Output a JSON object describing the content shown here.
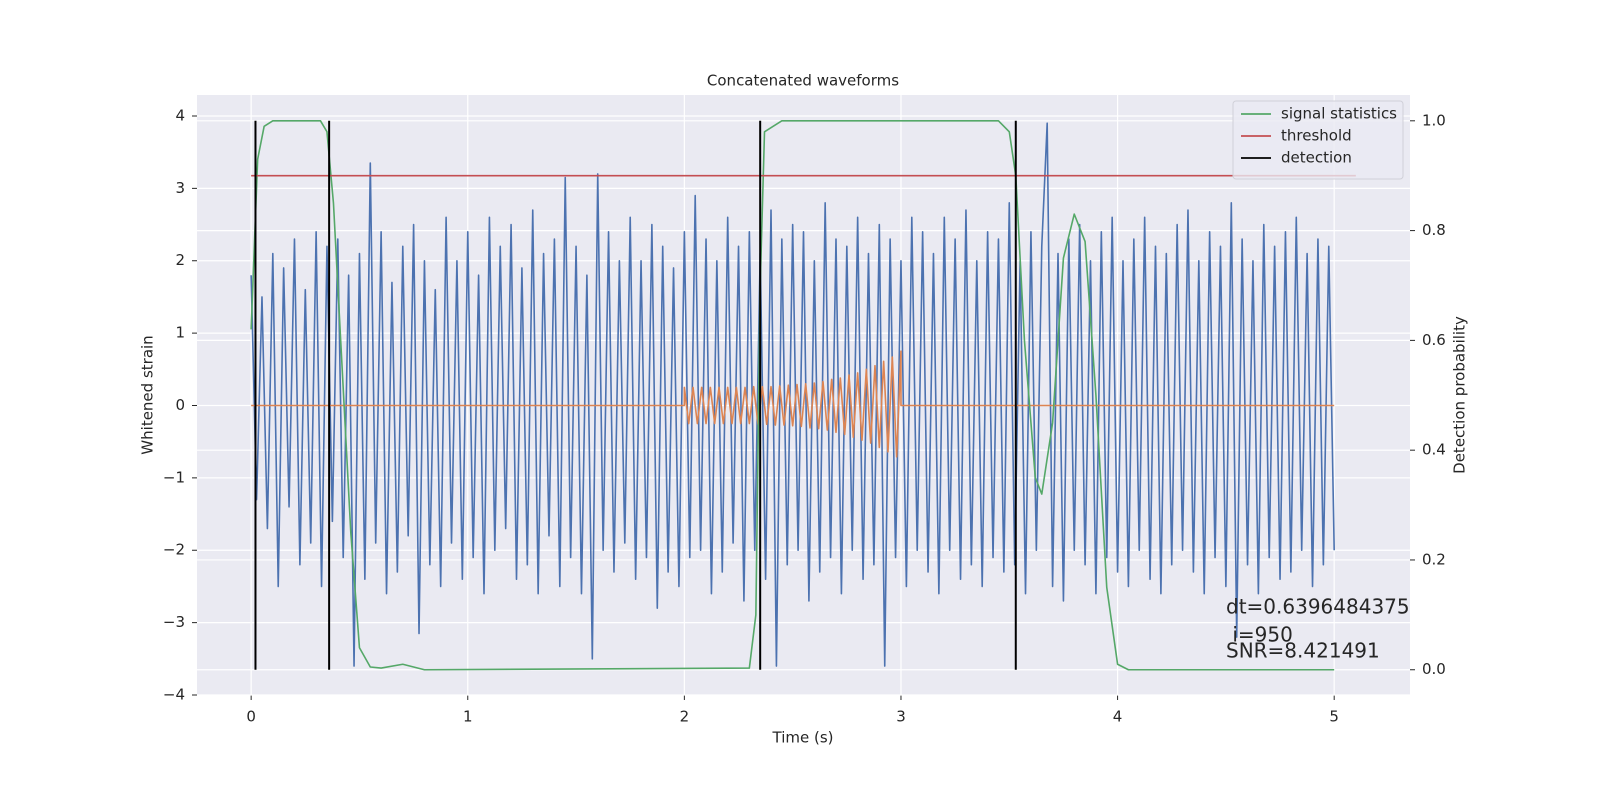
{
  "chart_data": {
    "type": "line",
    "title": "Concatenated waveforms",
    "xlabel": "Time (s)",
    "ylabel": "Whitened strain",
    "y2label": "Detection probability",
    "xlim": [
      -0.25,
      5.35
    ],
    "ylim": [
      -4.0,
      4.29
    ],
    "y2lim": [
      -0.046,
      1.047
    ],
    "xticks": [
      0,
      1,
      2,
      3,
      4,
      5
    ],
    "yticks": [
      {
        "value": -4,
        "label": "−4"
      },
      {
        "value": -3,
        "label": "−3"
      },
      {
        "value": -2,
        "label": "−2"
      },
      {
        "value": -1,
        "label": "−1"
      },
      0,
      1,
      2,
      3,
      4
    ],
    "y2ticks": [
      {
        "value": 0,
        "label": "0.0"
      },
      0.2,
      0.4,
      0.6,
      0.8,
      {
        "value": 1,
        "label": "1.0"
      }
    ],
    "grid": true,
    "legend": "upper right",
    "annotations": [
      "dt=0.6396484375",
      " i=950",
      "SNR=8.421491"
    ],
    "series": [
      {
        "color": "#4c72b0",
        "x": [
          0,
          0.025,
          0.05,
          0.075,
          0.1,
          0.125,
          0.15,
          0.175,
          0.2,
          0.225,
          0.25,
          0.275,
          0.3,
          0.325,
          0.35,
          0.375,
          0.4,
          0.425,
          0.45,
          0.475,
          0.5,
          0.525,
          0.55,
          0.575,
          0.6,
          0.625,
          0.65,
          0.675,
          0.7,
          0.725,
          0.75,
          0.775,
          0.8,
          0.825,
          0.85,
          0.875,
          0.9,
          0.925,
          0.95,
          0.975,
          1,
          1.025,
          1.05,
          1.075,
          1.1,
          1.125,
          1.15,
          1.175,
          1.2,
          1.225,
          1.25,
          1.275,
          1.3,
          1.325,
          1.35,
          1.375,
          1.4,
          1.425,
          1.45,
          1.475,
          1.5,
          1.525,
          1.55,
          1.575,
          1.6,
          1.625,
          1.65,
          1.675,
          1.7,
          1.725,
          1.75,
          1.775,
          1.8,
          1.825,
          1.85,
          1.875,
          1.9,
          1.925,
          1.95,
          1.975,
          2,
          2.025,
          2.05,
          2.075,
          2.1,
          2.125,
          2.15,
          2.175,
          2.2,
          2.225,
          2.25,
          2.275,
          2.3,
          2.325,
          2.35,
          2.375,
          2.4,
          2.425,
          2.45,
          2.475,
          2.5,
          2.525,
          2.55,
          2.575,
          2.6,
          2.625,
          2.65,
          2.675,
          2.7,
          2.725,
          2.75,
          2.775,
          2.8,
          2.825,
          2.85,
          2.875,
          2.9,
          2.925,
          2.95,
          2.975,
          3,
          3.025,
          3.05,
          3.075,
          3.1,
          3.125,
          3.15,
          3.175,
          3.2,
          3.225,
          3.25,
          3.275,
          3.3,
          3.325,
          3.35,
          3.375,
          3.4,
          3.425,
          3.45,
          3.475,
          3.5,
          3.525,
          3.55,
          3.575,
          3.6,
          3.625,
          3.65,
          3.675,
          3.7,
          3.725,
          3.75,
          3.775,
          3.8,
          3.825,
          3.85,
          3.875,
          3.9,
          3.925,
          3.95,
          3.975,
          4,
          4.025,
          4.05,
          4.075,
          4.1,
          4.125,
          4.15,
          4.175,
          4.2,
          4.225,
          4.25,
          4.275,
          4.3,
          4.325,
          4.35,
          4.375,
          4.4,
          4.425,
          4.45,
          4.475,
          4.5,
          4.525,
          4.55,
          4.575,
          4.6,
          4.625,
          4.65,
          4.675,
          4.7,
          4.725,
          4.75,
          4.775,
          4.8,
          4.825,
          4.85,
          4.875,
          4.9,
          4.925,
          4.95,
          4.975,
          5
        ],
        "values": [
          1.8,
          -1.3,
          1.5,
          -1.7,
          2.1,
          -2.5,
          1.9,
          -1.4,
          2.3,
          -2.2,
          1.6,
          -1.9,
          2.4,
          -2.5,
          2.2,
          -1.6,
          2.3,
          -2.1,
          1.8,
          -3.6,
          2.1,
          -2.4,
          3.35,
          -1.9,
          2.4,
          -2.6,
          1.7,
          -2.3,
          2.2,
          -1.8,
          2.5,
          -3.15,
          2.0,
          -2.2,
          1.6,
          -2.5,
          2.6,
          -1.9,
          2.0,
          -2.4,
          2.4,
          -2.1,
          1.8,
          -2.6,
          2.6,
          -2.0,
          2.2,
          -1.7,
          2.5,
          -2.4,
          1.9,
          -2.2,
          2.7,
          -2.6,
          2.1,
          -1.8,
          2.3,
          -2.5,
          3.15,
          -2.1,
          2.2,
          -2.6,
          1.8,
          -3.5,
          3.2,
          -2.0,
          2.4,
          -2.3,
          2.0,
          -1.9,
          2.6,
          -2.4,
          2.0,
          -2.1,
          2.5,
          -2.8,
          2.2,
          -2.3,
          1.9,
          -2.5,
          2.4,
          -2.1,
          2.9,
          -2.0,
          2.3,
          -2.6,
          2.0,
          -2.3,
          2.6,
          -1.9,
          2.2,
          -2.7,
          2.4,
          -2.0,
          2.1,
          -2.4,
          2.7,
          -3.6,
          2.3,
          -2.2,
          2.5,
          -2.0,
          2.4,
          -2.7,
          2.0,
          -2.3,
          2.8,
          -2.1,
          2.3,
          -2.6,
          2.2,
          -2.0,
          2.6,
          -2.4,
          2.1,
          -2.2,
          2.5,
          -3.6,
          2.3,
          -2.1,
          2.0,
          -2.5,
          2.6,
          -2.0,
          2.4,
          -2.3,
          2.1,
          -2.6,
          2.6,
          -2.0,
          2.3,
          -2.4,
          2.7,
          -2.2,
          2.0,
          -2.5,
          2.4,
          -2.1,
          2.3,
          -2.3,
          2.8,
          -2.2,
          2.0,
          -2.6,
          2.4,
          -2.0,
          2.2,
          3.9,
          -2.5,
          2.1,
          -2.7,
          2.3,
          -2.0,
          2.5,
          -2.2,
          2.0,
          -2.6,
          2.4,
          -2.1,
          2.6,
          -2.3,
          2.0,
          -2.5,
          2.3,
          -2.0,
          2.6,
          -2.4,
          2.2,
          -2.6,
          2.1,
          -2.2,
          2.5,
          -2.0,
          2.7,
          -2.3,
          2.0,
          -2.6,
          2.4,
          -2.1,
          2.2,
          -2.5,
          2.8,
          -3.2,
          2.3,
          -2.2,
          2.0,
          -2.6,
          2.5,
          -2.1,
          2.2,
          -2.4,
          2.4,
          -2.3,
          2.6,
          -2.0,
          2.1,
          -2.5,
          2.3,
          -2.2,
          2.2,
          -2.0
        ]
      },
      {
        "color": "#dd8452",
        "x": [
          0,
          2,
          2,
          2.02,
          2.04,
          2.06,
          2.08,
          2.1,
          2.12,
          2.14,
          2.16,
          2.18,
          2.2,
          2.22,
          2.24,
          2.26,
          2.28,
          2.3,
          2.32,
          2.34,
          2.36,
          2.38,
          2.4,
          2.42,
          2.44,
          2.46,
          2.48,
          2.5,
          2.52,
          2.54,
          2.56,
          2.58,
          2.6,
          2.62,
          2.64,
          2.66,
          2.68,
          2.7,
          2.72,
          2.74,
          2.76,
          2.78,
          2.8,
          2.82,
          2.84,
          2.86,
          2.88,
          2.9,
          2.92,
          2.94,
          2.96,
          2.98,
          3,
          3.0,
          5
        ],
        "values": [
          0,
          0,
          0.25,
          -0.25,
          0.25,
          -0.25,
          0.25,
          -0.25,
          0.25,
          -0.25,
          0.25,
          -0.25,
          0.25,
          -0.25,
          0.25,
          -0.25,
          0.25,
          -0.25,
          0.26,
          -0.26,
          0.26,
          -0.26,
          0.26,
          -0.27,
          0.27,
          -0.27,
          0.28,
          -0.28,
          0.29,
          -0.29,
          0.3,
          -0.31,
          0.31,
          -0.32,
          0.33,
          -0.34,
          0.36,
          -0.37,
          0.38,
          -0.4,
          0.42,
          -0.44,
          0.45,
          -0.48,
          0.5,
          -0.52,
          0.55,
          -0.58,
          0.61,
          -0.64,
          0.67,
          -0.71,
          0.75,
          0,
          0
        ]
      },
      {
        "name": "signal statistics",
        "color": "#55a868",
        "axis": "y2",
        "x": [
          0,
          0.03,
          0.06,
          0.1,
          0.32,
          0.35,
          0.38,
          0.42,
          0.46,
          0.5,
          0.55,
          0.6,
          0.7,
          0.8,
          2.3,
          2.33,
          2.35,
          2.37,
          2.45,
          3.45,
          3.5,
          3.53,
          3.57,
          3.62,
          3.65,
          3.7,
          3.75,
          3.8,
          3.85,
          3.9,
          3.95,
          4.0,
          4.05,
          5.0
        ],
        "values": [
          0.62,
          0.93,
          0.99,
          1.0,
          1.0,
          0.98,
          0.85,
          0.55,
          0.25,
          0.04,
          0.005,
          0.003,
          0.01,
          0.0,
          0.003,
          0.1,
          0.7,
          0.98,
          1.0,
          1.0,
          0.98,
          0.9,
          0.6,
          0.35,
          0.32,
          0.45,
          0.75,
          0.83,
          0.78,
          0.5,
          0.15,
          0.01,
          0.0,
          0.0
        ]
      },
      {
        "name": "threshold",
        "color": "#c44e52",
        "axis": "y2",
        "x": [
          0,
          5.1
        ],
        "values": [
          0.9,
          0.9
        ]
      },
      {
        "name": "detection",
        "color": "#000000",
        "axis": "y2",
        "kind": "vlines",
        "x": [
          0.02,
          0.36,
          2.35,
          3.53
        ],
        "span": [
          0,
          1
        ]
      }
    ]
  }
}
